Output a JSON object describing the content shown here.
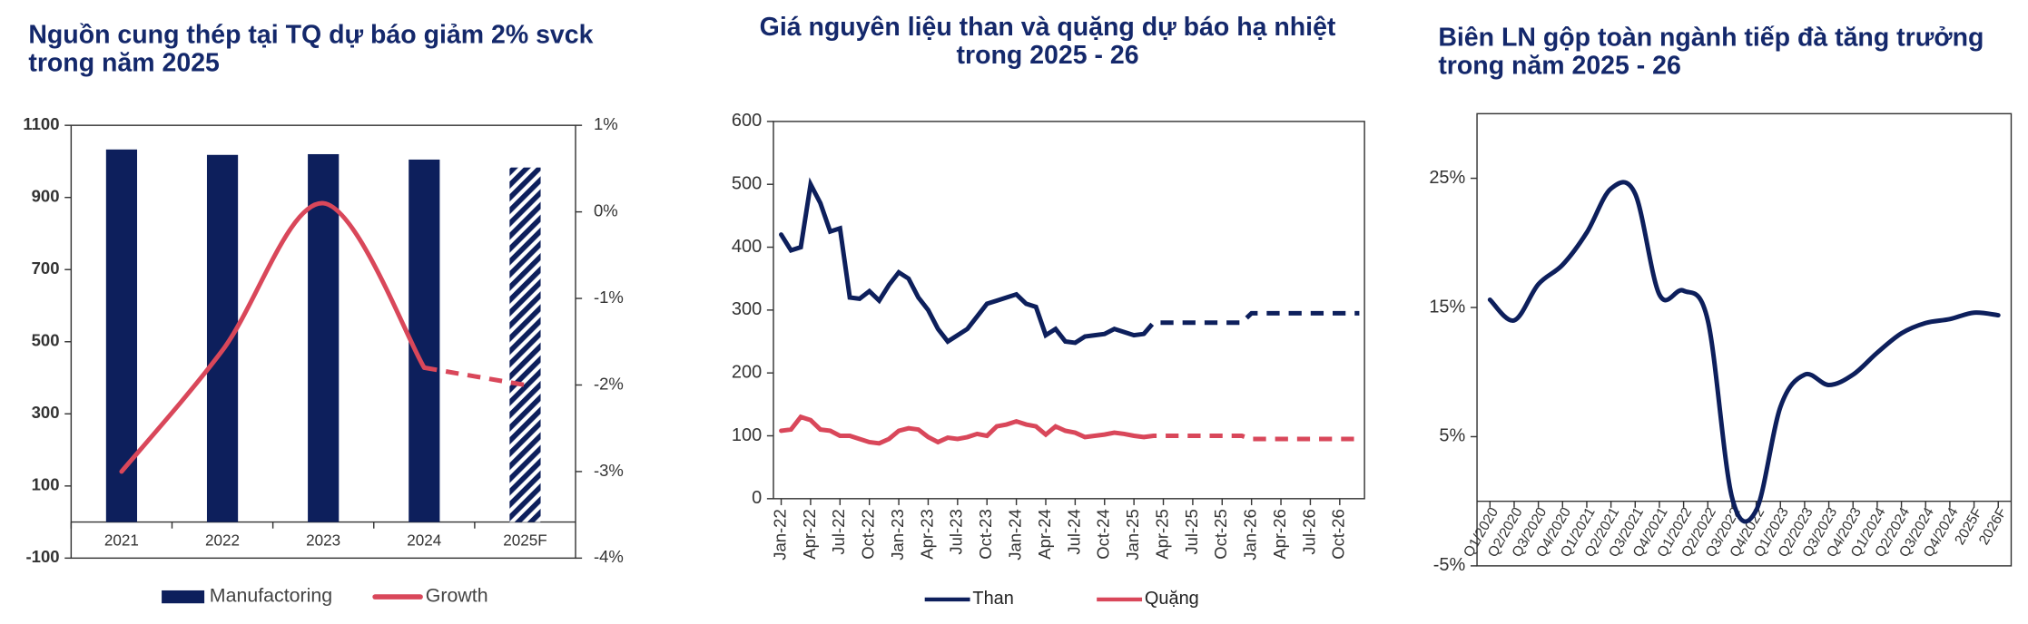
{
  "chart_data": [
    {
      "type": "bar",
      "title": [
        "Nguồn cung thép tại TQ dự báo giảm 2% svck",
        "trong năm 2025"
      ],
      "categories": [
        "2021",
        "2022",
        "2023",
        "2024",
        "2025F"
      ],
      "series": [
        {
          "name": "Manufactoring",
          "type": "bar",
          "color": "#0d1f5c",
          "values": [
            1033,
            1018,
            1020,
            1005,
            983
          ],
          "hatched_from": 4
        },
        {
          "name": "Growth",
          "type": "line",
          "axis": "y2",
          "color": "#d9475a",
          "values": [
            -3.0,
            -1.6,
            0.1,
            -1.8,
            -2.0
          ],
          "dashed_from": 3,
          "smooth": true
        }
      ],
      "ylim": [
        -100,
        1100
      ],
      "yticks": [
        -100,
        100,
        300,
        500,
        700,
        900,
        1100
      ],
      "y2lim": [
        -4,
        1
      ],
      "y2ticks": [
        {
          "value": -4,
          "label": "-4%"
        },
        {
          "value": -3,
          "label": "-3%"
        },
        {
          "value": -2,
          "label": "-2%"
        },
        {
          "value": -1,
          "label": "-1%"
        },
        {
          "value": 0,
          "label": "0%"
        },
        {
          "value": 1,
          "label": "1%"
        }
      ],
      "grid": false,
      "legend": "bottom"
    },
    {
      "type": "line",
      "title": [
        "Giá nguyên liệu than và quặng dự báo hạ nhiệt",
        "trong 2025 - 26"
      ],
      "categories": [
        "Jan-22",
        null,
        null,
        "Apr-22",
        null,
        null,
        "Jul-22",
        null,
        null,
        "Oct-22",
        null,
        null,
        "Jan-23",
        null,
        null,
        "Apr-23",
        null,
        null,
        "Jul-23",
        null,
        null,
        "Oct-23",
        null,
        null,
        "Jan-24",
        null,
        null,
        "Apr-24",
        null,
        null,
        "Jul-24",
        null,
        null,
        "Oct-24",
        null,
        null,
        "Jan-25",
        null,
        null,
        "Apr-25",
        null,
        null,
        "Jul-25",
        null,
        null,
        "Oct-25",
        null,
        null,
        "Jan-26",
        null,
        null,
        "Apr-26",
        null,
        null,
        "Jul-26",
        null,
        null,
        "Oct-26",
        null,
        null
      ],
      "series": [
        {
          "name": "Than",
          "color": "#0d1f5c",
          "dashed_from": 37,
          "values": [
            420,
            395,
            400,
            500,
            470,
            425,
            430,
            320,
            318,
            330,
            315,
            340,
            360,
            350,
            320,
            300,
            270,
            250,
            260,
            270,
            290,
            310,
            315,
            320,
            325,
            310,
            305,
            260,
            270,
            250,
            248,
            258,
            260,
            262,
            270,
            265,
            260,
            262,
            280,
            280,
            280,
            280,
            280,
            280,
            280,
            280,
            280,
            280,
            295,
            295,
            295,
            295,
            295,
            295,
            295,
            295,
            295,
            295,
            295,
            295
          ]
        },
        {
          "name": "Quặng",
          "color": "#d9475a",
          "dashed_from": 37,
          "values": [
            108,
            110,
            130,
            125,
            110,
            108,
            100,
            100,
            95,
            90,
            88,
            95,
            108,
            112,
            110,
            98,
            90,
            97,
            95,
            98,
            103,
            100,
            115,
            118,
            123,
            118,
            115,
            102,
            115,
            108,
            105,
            98,
            100,
            102,
            105,
            103,
            100,
            98,
            100,
            100,
            100,
            100,
            100,
            100,
            100,
            100,
            100,
            100,
            95,
            95,
            95,
            95,
            95,
            95,
            95,
            95,
            95,
            95,
            95,
            95
          ]
        }
      ],
      "ylim": [
        0,
        600
      ],
      "yticks": [
        0,
        100,
        200,
        300,
        400,
        500,
        600
      ],
      "grid": false,
      "legend": "bottom"
    },
    {
      "type": "line",
      "title": [
        "Biên LN gộp toàn ngành tiếp đà tăng trưởng",
        "trong năm 2025 - 26"
      ],
      "categories": [
        "Q1/2020",
        "Q2/2020",
        "Q3/2020",
        "Q4/2020",
        "Q1/2021",
        "Q2/2021",
        "Q3/2021",
        "Q4/2021",
        "Q1/2022",
        "Q2/2022",
        "Q3/2022",
        "Q4/2022",
        "Q1/2023",
        "Q2/2023",
        "Q3/2023",
        "Q4/2023",
        "Q1/2024",
        "Q2/2024",
        "Q3/2024",
        "Q4/2024",
        "2025F",
        "2026F"
      ],
      "series": [
        {
          "name": "Biên LN gộp",
          "color": "#0d1f5c",
          "smooth": true,
          "values": [
            15.6,
            14.0,
            16.8,
            18.3,
            20.8,
            24.2,
            23.8,
            16.0,
            16.3,
            14.0,
            0.3,
            -0.7,
            7.3,
            9.8,
            9.0,
            9.8,
            11.5,
            13.0,
            13.8,
            14.1,
            14.6,
            14.4
          ]
        }
      ],
      "ylim": [
        -5,
        30
      ],
      "yticks": [
        {
          "value": -5,
          "label": "-5%"
        },
        {
          "value": 5,
          "label": "5%"
        },
        {
          "value": 15,
          "label": "15%"
        },
        {
          "value": 25,
          "label": "25%"
        }
      ],
      "grid": false,
      "legend": "none"
    }
  ]
}
